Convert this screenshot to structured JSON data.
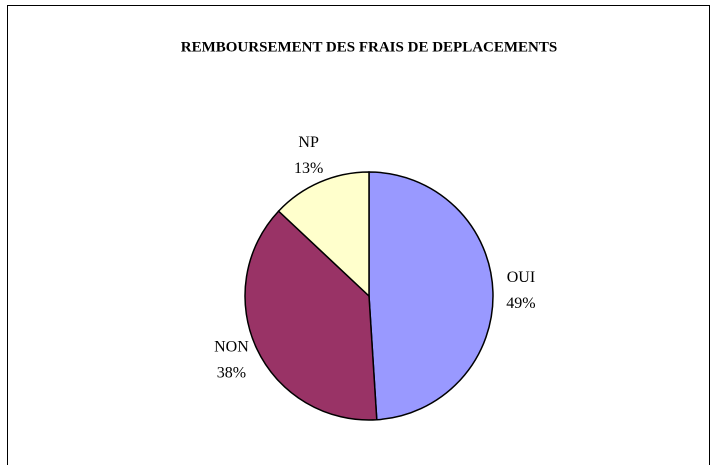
{
  "chart_data": {
    "type": "pie",
    "title": "REMBOURSEMENT DES FRAIS DE DEPLACEMENTS",
    "categories": [
      "OUI",
      "NON",
      "NP"
    ],
    "values": [
      49,
      38,
      13
    ],
    "value_labels": [
      "49%",
      "38%",
      "13%"
    ],
    "colors": [
      "#9999ff",
      "#993366",
      "#ffffcc"
    ]
  }
}
